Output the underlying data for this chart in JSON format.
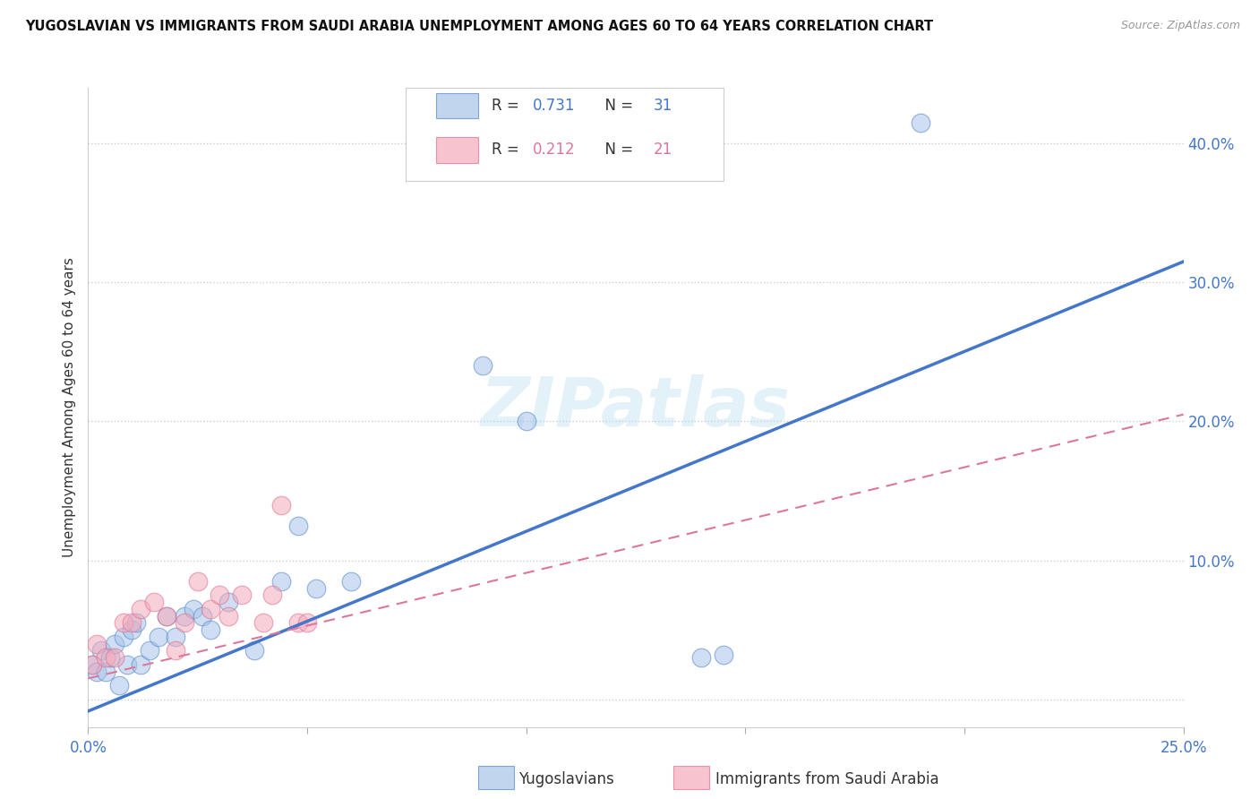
{
  "title": "YUGOSLAVIAN VS IMMIGRANTS FROM SAUDI ARABIA UNEMPLOYMENT AMONG AGES 60 TO 64 YEARS CORRELATION CHART",
  "source": "Source: ZipAtlas.com",
  "ylabel": "Unemployment Among Ages 60 to 64 years",
  "xlim": [
    0.0,
    0.25
  ],
  "ylim": [
    -0.02,
    0.44
  ],
  "xticks": [
    0.0,
    0.05,
    0.1,
    0.15,
    0.2,
    0.25
  ],
  "yticks": [
    0.0,
    0.1,
    0.2,
    0.3,
    0.4
  ],
  "ytick_labels": [
    "",
    "10.0%",
    "20.0%",
    "30.0%",
    "40.0%"
  ],
  "xtick_labels": [
    "0.0%",
    "",
    "",
    "",
    "",
    "25.0%"
  ],
  "legend_blue_r": "0.731",
  "legend_blue_n": "31",
  "legend_pink_r": "0.212",
  "legend_pink_n": "21",
  "legend_label_blue": "Yugoslavians",
  "legend_label_pink": "Immigrants from Saudi Arabia",
  "blue_fill": "#A8C4E8",
  "pink_fill": "#F4AABB",
  "blue_edge": "#5588CC",
  "pink_edge": "#E07090",
  "line_blue": "#4477CC",
  "line_pink": "#DD7799",
  "watermark": "ZIPatlas",
  "blue_scatter_x": [
    0.001,
    0.002,
    0.003,
    0.004,
    0.005,
    0.006,
    0.007,
    0.008,
    0.009,
    0.01,
    0.011,
    0.012,
    0.014,
    0.016,
    0.018,
    0.02,
    0.022,
    0.024,
    0.026,
    0.028,
    0.032,
    0.038,
    0.044,
    0.048,
    0.052,
    0.06,
    0.09,
    0.1,
    0.14,
    0.145,
    0.19
  ],
  "blue_scatter_y": [
    0.025,
    0.02,
    0.035,
    0.02,
    0.03,
    0.04,
    0.01,
    0.045,
    0.025,
    0.05,
    0.055,
    0.025,
    0.035,
    0.045,
    0.06,
    0.045,
    0.06,
    0.065,
    0.06,
    0.05,
    0.07,
    0.035,
    0.085,
    0.125,
    0.08,
    0.085,
    0.24,
    0.2,
    0.03,
    0.032,
    0.415
  ],
  "pink_scatter_x": [
    0.001,
    0.002,
    0.004,
    0.006,
    0.008,
    0.01,
    0.012,
    0.015,
    0.018,
    0.02,
    0.022,
    0.025,
    0.028,
    0.03,
    0.032,
    0.035,
    0.04,
    0.042,
    0.044,
    0.048,
    0.05
  ],
  "pink_scatter_y": [
    0.025,
    0.04,
    0.03,
    0.03,
    0.055,
    0.055,
    0.065,
    0.07,
    0.06,
    0.035,
    0.055,
    0.085,
    0.065,
    0.075,
    0.06,
    0.075,
    0.055,
    0.075,
    0.14,
    0.055,
    0.055
  ],
  "blue_line_x": [
    -0.005,
    0.25
  ],
  "blue_line_y": [
    -0.015,
    0.315
  ],
  "pink_line_x": [
    0.0,
    0.25
  ],
  "pink_line_y": [
    0.015,
    0.205
  ]
}
